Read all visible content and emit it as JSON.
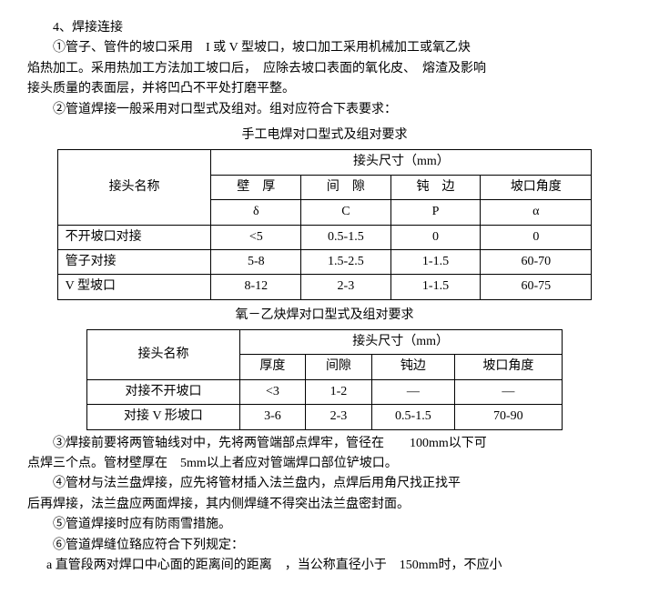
{
  "heading": "4、焊接连接",
  "p1a": "①管子、管件的坡口采用　I 或 V 型坡口，坡口加工采用机械加工或氧乙炔",
  "p1b": "焰热加工。采用热加工方法加工坡口后，　应除去坡口表面的氧化皮、　熔渣及影响",
  "p1c": "接头质量的表面层，并将凹凸不平处打磨平整。",
  "p2": "②管道焊接一般采用对口型式及组对。组对应符合下表要求：",
  "caption1": "手工电焊对口型式及组对要求",
  "t1": {
    "rowhead": "接头名称",
    "grouphead": "接头尺寸（mm）",
    "cols": [
      "壁　厚",
      "间　隙",
      "钝　边",
      "坡口角度"
    ],
    "syms": [
      "δ",
      "C",
      "P",
      "α"
    ],
    "rows": [
      [
        "不开坡口对接",
        "<5",
        "0.5-1.5",
        "0",
        "0"
      ],
      [
        "管子对接",
        "5-8",
        "1.5-2.5",
        "1-1.5",
        "60-70"
      ],
      [
        "V 型坡口",
        "8-12",
        "2-3",
        "1-1.5",
        "60-75"
      ]
    ]
  },
  "caption2": "氧－乙炔焊对口型式及组对要求",
  "t2": {
    "rowhead": "接头名称",
    "grouphead": "接头尺寸（mm）",
    "cols": [
      "厚度",
      "间隙",
      "钝边",
      "坡口角度"
    ],
    "rows": [
      [
        "对接不开坡口",
        "<3",
        "1-2",
        "—",
        "—"
      ],
      [
        "对接 V 形坡口",
        "3-6",
        "2-3",
        "0.5-1.5",
        "70-90"
      ]
    ]
  },
  "p3a": "③焊接前要将两管轴线对中，先将两管端部点焊牢，管径在　　100mm以下可",
  "p3b": "点焊三个点。管材壁厚在　5mm以上者应对管端焊口部位铲坡口。",
  "p4a": "④管材与法兰盘焊接，应先将管材插入法兰盘内，点焊后用角尺找正找平",
  "p4b": "后再焊接，法兰盘应两面焊接，其内侧焊缝不得突出法兰盘密封面。",
  "p5": "⑤管道焊接时应有防雨雪措施。",
  "p6": "⑥管道焊缝位臵应符合下列规定：",
  "p6a": "a 直管段两对焊口中心面的距离间的距离　，当公称直径小于　150mm时，不应小"
}
